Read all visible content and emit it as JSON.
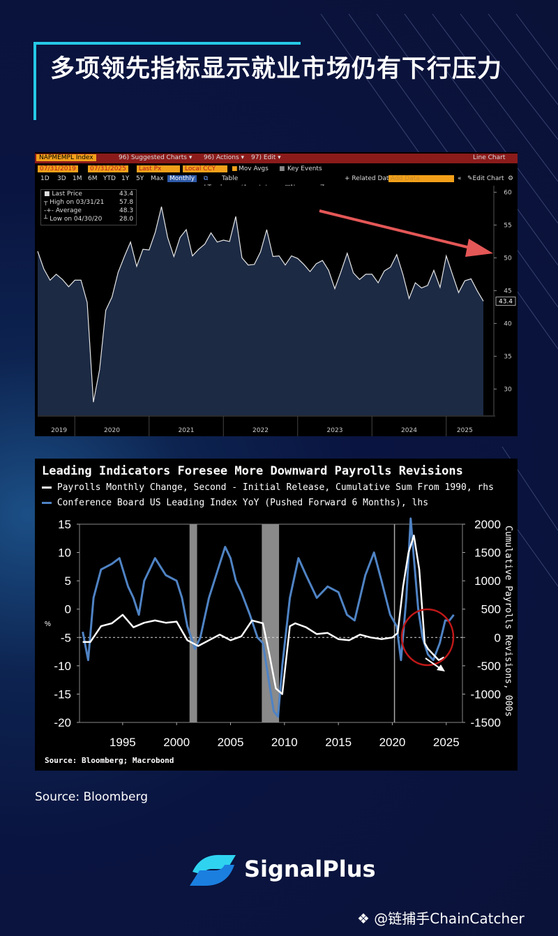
{
  "title": "多项领先指标显示就业市场仍有下行压力",
  "bloomberg": {
    "ticker": "NAPMEMPL Index",
    "menu": [
      "96) Suggested Charts ▾",
      "96) Actions ▾",
      "97) Edit ▾"
    ],
    "chart_type_label": "Line Chart",
    "date_start": "07/31/2019",
    "date_end": "07/31/2025",
    "last_px": "Last Px",
    "currency": "Local CCY",
    "mov_avgs": "Mov Avgs",
    "key_events": "Key Events",
    "periods": [
      "1D",
      "3D",
      "1M",
      "6M",
      "YTD",
      "1Y",
      "5Y",
      "Max"
    ],
    "frequency": "Monthly",
    "table_label": "Table",
    "related_data": "+ Related Dat",
    "add_data": "Add Data",
    "edit_chart": "Edit Chart",
    "tools": [
      "Track",
      "Annotate",
      "News",
      "Zoom"
    ],
    "legend": {
      "last_price_label": "Last Price",
      "last_price": "43.4",
      "high_label": "High on 03/31/21",
      "high": "57.8",
      "average_label": "Average",
      "average": "48.3",
      "low_label": "Low on 04/30/20",
      "low": "28.0"
    },
    "last_value_tag": "43.4"
  },
  "macrobond": {
    "title": "Leading Indicators Foresee More Downward Payrolls Revisions",
    "legend_white": "Payrolls Monthly Change, Second - Initial Release, Cumulative Sum From 1990, rhs",
    "legend_blue": "Conference Board US Leading Index YoY (Pushed Forward 6 Months), lhs",
    "right_axis_label": "Cumulative Payrolls Revisions, 000s",
    "left_unit": "%",
    "source": "Source: Bloomberg; Macrobond"
  },
  "source_note": "Source: Bloomberg",
  "brand": "SignalPlus",
  "watermark": "@链捕手ChainCatcher",
  "colors": {
    "accent": "#25c9e6",
    "bbg_fill": "#1c2a44",
    "blue_series": "#4f83c4",
    "red_arrow": "#e45757"
  },
  "chart_data": [
    {
      "type": "area",
      "title": "NAPMEMPL Index",
      "frequency": "Monthly",
      "x_ticks": [
        "2019",
        "2020",
        "2021",
        "2022",
        "2023",
        "2024",
        "2025"
      ],
      "ylim": [
        26,
        61
      ],
      "y_ticks": [
        30,
        35,
        40,
        45,
        50,
        55,
        60
      ],
      "series": [
        {
          "name": "Last Price",
          "x": [
            "2019-07",
            "2019-08",
            "2019-09",
            "2019-10",
            "2019-11",
            "2019-12",
            "2020-01",
            "2020-02",
            "2020-03",
            "2020-04",
            "2020-05",
            "2020-06",
            "2020-07",
            "2020-08",
            "2020-09",
            "2020-10",
            "2020-11",
            "2020-12",
            "2021-01",
            "2021-02",
            "2021-03",
            "2021-04",
            "2021-05",
            "2021-06",
            "2021-07",
            "2021-08",
            "2021-09",
            "2021-10",
            "2021-11",
            "2021-12",
            "2022-01",
            "2022-02",
            "2022-03",
            "2022-04",
            "2022-05",
            "2022-06",
            "2022-07",
            "2022-08",
            "2022-09",
            "2022-10",
            "2022-11",
            "2022-12",
            "2023-01",
            "2023-02",
            "2023-03",
            "2023-04",
            "2023-05",
            "2023-06",
            "2023-07",
            "2023-08",
            "2023-09",
            "2023-10",
            "2023-11",
            "2023-12",
            "2024-01",
            "2024-02",
            "2024-03",
            "2024-04",
            "2024-05",
            "2024-06",
            "2024-07",
            "2024-08",
            "2024-09",
            "2024-10",
            "2024-11",
            "2024-12",
            "2025-01",
            "2025-02",
            "2025-03",
            "2025-04",
            "2025-05",
            "2025-06",
            "2025-07"
          ],
          "values": [
            51.0,
            48.3,
            46.6,
            47.5,
            46.7,
            45.6,
            46.6,
            46.6,
            43.2,
            28.0,
            33.0,
            42.0,
            44.0,
            47.8,
            50.2,
            52.4,
            48.7,
            51.3,
            51.2,
            53.9,
            57.8,
            53.1,
            50.2,
            53.1,
            54.3,
            50.3,
            51.3,
            52.1,
            53.8,
            52.4,
            52.7,
            52.5,
            56.3,
            50.0,
            48.9,
            49.0,
            50.9,
            54.3,
            50.2,
            50.3,
            48.9,
            50.3,
            49.9,
            49.0,
            47.9,
            49.1,
            49.6,
            48.1,
            45.3,
            47.9,
            50.7,
            47.7,
            46.7,
            47.5,
            47.5,
            46.2,
            48.0,
            48.6,
            50.5,
            47.5,
            43.8,
            46.2,
            45.4,
            45.8,
            48.1,
            45.5,
            50.3,
            47.5,
            44.7,
            46.5,
            46.8,
            45.0,
            43.4
          ]
        }
      ],
      "annotation": "red arrow pointing down-right"
    },
    {
      "type": "line",
      "title": "Leading Indicators Foresee More Downward Payrolls Revisions",
      "x_ticks": [
        1995,
        2000,
        2005,
        2010,
        2015,
        2020,
        2025
      ],
      "left_axis": {
        "ylim": [
          -20,
          15
        ],
        "ticks": [
          15,
          10,
          5,
          0,
          -5,
          -10,
          -15,
          -20
        ],
        "unit": "%"
      },
      "right_axis": {
        "ylim": [
          -1500,
          2000
        ],
        "ticks": [
          2000,
          1500,
          1000,
          500,
          0,
          -500,
          -1000,
          -1500
        ],
        "label": "Cumulative Payrolls Revisions, 000s"
      },
      "recessions": [
        [
          2001.2,
          2001.9
        ],
        [
          2007.9,
          2009.5
        ]
      ],
      "reference_line_year": 2020.2,
      "series": [
        {
          "name": "Conference Board US Leading Index YoY (Pushed Forward 6 Months), lhs",
          "axis": "left",
          "x": [
            1991.3,
            1991.8,
            1992.3,
            1993,
            1994,
            1994.7,
            1995.5,
            1996,
            1996.5,
            1997,
            1998,
            1999,
            2000,
            2000.5,
            2001,
            2001.7,
            2002.2,
            2003,
            2004,
            2004.5,
            2005,
            2005.5,
            2006,
            2006.8,
            2007.5,
            2008,
            2008.5,
            2009,
            2009.4,
            2009.8,
            2010.5,
            2011.3,
            2012,
            2013,
            2014,
            2015,
            2015.8,
            2016.5,
            2017.5,
            2018.3,
            2019,
            2019.8,
            2020.4,
            2020.8,
            2021.3,
            2021.7,
            2022,
            2022.4,
            2022.8,
            2023.3,
            2023.8,
            2024.4,
            2024.9,
            2025.3,
            2025.7
          ],
          "values": [
            -4,
            -9,
            2,
            7,
            8,
            9,
            4,
            2,
            -1,
            5,
            9,
            6,
            5,
            2,
            -3,
            -7,
            -5,
            2,
            8,
            11,
            9,
            5,
            3,
            -1,
            -5,
            -6,
            -12,
            -18,
            -19,
            -10,
            2,
            9,
            6,
            2,
            4,
            3,
            -1,
            -2,
            6,
            10,
            5,
            -1,
            -3,
            -9,
            2,
            16,
            9,
            0,
            -5,
            -8,
            -9,
            -6,
            -2,
            -2,
            -1
          ]
        },
        {
          "name": "Payrolls Monthly Change, Second - Initial Release, Cumulative Sum From 1990, rhs",
          "axis": "right",
          "x": [
            1991.3,
            1992,
            1993,
            1994,
            1995,
            1996,
            1997,
            1998,
            1999,
            2000,
            2001,
            2002,
            2003,
            2004,
            2005,
            2006,
            2007,
            2008,
            2008.6,
            2009.2,
            2009.8,
            2010.5,
            2011,
            2012,
            2013,
            2014,
            2015,
            2016,
            2017,
            2018,
            2019,
            2020,
            2020.5,
            2021,
            2021.5,
            2022,
            2022.5,
            2023,
            2023.3,
            2023.8,
            2024.3,
            2024.8
          ],
          "values": [
            -80,
            -80,
            200,
            250,
            400,
            180,
            260,
            300,
            260,
            280,
            -50,
            -150,
            -50,
            50,
            -50,
            20,
            300,
            250,
            -300,
            -900,
            -1000,
            200,
            250,
            180,
            60,
            80,
            -30,
            -50,
            50,
            0,
            -30,
            0,
            80,
            900,
            1500,
            1800,
            1200,
            -100,
            -200,
            -300,
            -400,
            -350
          ]
        }
      ]
    }
  ]
}
